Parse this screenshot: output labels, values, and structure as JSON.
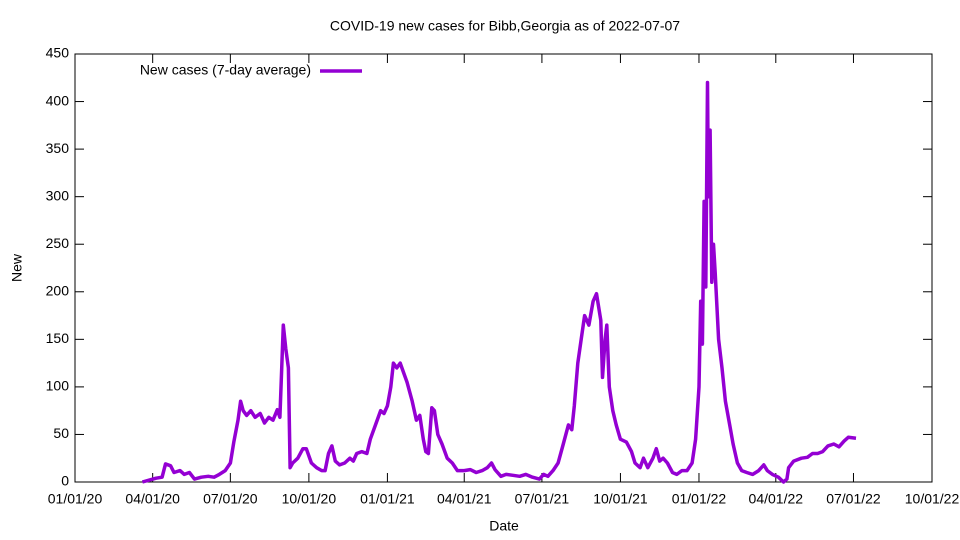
{
  "chart_data": {
    "type": "line",
    "title": "COVID-19 new cases for Bibb,Georgia as of 2022-07-07",
    "x_label": "Date",
    "y_label": "New",
    "xlim": [
      "2020-01-01",
      "2022-10-01"
    ],
    "xticks": [
      {
        "value": "2020-01-01",
        "label": "01/01/20"
      },
      {
        "value": "2020-04-01",
        "label": "04/01/20"
      },
      {
        "value": "2020-07-01",
        "label": "07/01/20"
      },
      {
        "value": "2020-10-01",
        "label": "10/01/20"
      },
      {
        "value": "2021-01-01",
        "label": "01/01/21"
      },
      {
        "value": "2021-04-01",
        "label": "04/01/21"
      },
      {
        "value": "2021-07-01",
        "label": "07/01/21"
      },
      {
        "value": "2021-10-01",
        "label": "10/01/21"
      },
      {
        "value": "2022-01-01",
        "label": "01/01/22"
      },
      {
        "value": "2022-04-01",
        "label": "04/01/22"
      },
      {
        "value": "2022-07-01",
        "label": "07/01/22"
      },
      {
        "value": "2022-10-01",
        "label": "10/01/22"
      }
    ],
    "ylim": [
      0,
      450
    ],
    "yticks": [
      0,
      50,
      100,
      150,
      200,
      250,
      300,
      350,
      400,
      450
    ],
    "legend": "top-left",
    "x": [
      "2020-03-20",
      "2020-03-28",
      "2020-04-05",
      "2020-04-12",
      "2020-04-16",
      "2020-04-22",
      "2020-04-26",
      "2020-05-03",
      "2020-05-08",
      "2020-05-14",
      "2020-05-20",
      "2020-05-28",
      "2020-06-05",
      "2020-06-12",
      "2020-06-18",
      "2020-06-25",
      "2020-07-01",
      "2020-07-05",
      "2020-07-10",
      "2020-07-13",
      "2020-07-16",
      "2020-07-20",
      "2020-07-25",
      "2020-07-30",
      "2020-08-05",
      "2020-08-10",
      "2020-08-15",
      "2020-08-20",
      "2020-08-25",
      "2020-08-28",
      "2020-09-01",
      "2020-09-04",
      "2020-09-07",
      "2020-09-09",
      "2020-09-12",
      "2020-09-18",
      "2020-09-24",
      "2020-09-28",
      "2020-10-04",
      "2020-10-10",
      "2020-10-16",
      "2020-10-20",
      "2020-10-24",
      "2020-10-28",
      "2020-11-01",
      "2020-11-06",
      "2020-11-12",
      "2020-11-18",
      "2020-11-22",
      "2020-11-26",
      "2020-12-02",
      "2020-12-08",
      "2020-12-12",
      "2020-12-18",
      "2020-12-24",
      "2020-12-28",
      "2021-01-01",
      "2021-01-05",
      "2021-01-08",
      "2021-01-12",
      "2021-01-16",
      "2021-01-20",
      "2021-01-24",
      "2021-01-30",
      "2021-02-04",
      "2021-02-08",
      "2021-02-12",
      "2021-02-15",
      "2021-02-18",
      "2021-02-22",
      "2021-02-25",
      "2021-03-01",
      "2021-03-06",
      "2021-03-12",
      "2021-03-18",
      "2021-03-24",
      "2021-04-01",
      "2021-04-08",
      "2021-04-15",
      "2021-04-22",
      "2021-04-28",
      "2021-05-03",
      "2021-05-07",
      "2021-05-14",
      "2021-05-20",
      "2021-05-28",
      "2021-06-05",
      "2021-06-12",
      "2021-06-20",
      "2021-06-28",
      "2021-07-03",
      "2021-07-08",
      "2021-07-14",
      "2021-07-20",
      "2021-07-26",
      "2021-08-01",
      "2021-08-05",
      "2021-08-08",
      "2021-08-12",
      "2021-08-16",
      "2021-08-20",
      "2021-08-25",
      "2021-08-30",
      "2021-09-03",
      "2021-09-08",
      "2021-09-10",
      "2021-09-13",
      "2021-09-15",
      "2021-09-18",
      "2021-09-22",
      "2021-09-26",
      "2021-10-01",
      "2021-10-08",
      "2021-10-14",
      "2021-10-18",
      "2021-10-24",
      "2021-10-28",
      "2021-11-02",
      "2021-11-08",
      "2021-11-12",
      "2021-11-16",
      "2021-11-20",
      "2021-11-25",
      "2021-12-01",
      "2021-12-06",
      "2021-12-12",
      "2021-12-18",
      "2021-12-24",
      "2021-12-28",
      "2022-01-01",
      "2022-01-03",
      "2022-01-05",
      "2022-01-07",
      "2022-01-09",
      "2022-01-11",
      "2022-01-12",
      "2022-01-14",
      "2022-01-16",
      "2022-01-18",
      "2022-01-20",
      "2022-01-24",
      "2022-01-28",
      "2022-02-01",
      "2022-02-06",
      "2022-02-10",
      "2022-02-15",
      "2022-02-20",
      "2022-02-26",
      "2022-03-05",
      "2022-03-12",
      "2022-03-18",
      "2022-03-22",
      "2022-03-28",
      "2022-04-04",
      "2022-04-10",
      "2022-04-14",
      "2022-04-16",
      "2022-04-22",
      "2022-05-01",
      "2022-05-08",
      "2022-05-14",
      "2022-05-20",
      "2022-05-26",
      "2022-06-01",
      "2022-06-08",
      "2022-06-14",
      "2022-06-20",
      "2022-06-25",
      "2022-07-04"
    ],
    "series": [
      {
        "name": "New cases (7-day average)",
        "color": "#9400d3",
        "values": [
          0,
          2,
          4,
          5,
          19,
          17,
          10,
          12,
          8,
          10,
          3,
          5,
          6,
          5,
          8,
          12,
          20,
          42,
          65,
          85,
          75,
          70,
          75,
          68,
          72,
          62,
          68,
          65,
          76,
          68,
          165,
          140,
          120,
          15,
          20,
          25,
          35,
          35,
          20,
          15,
          12,
          12,
          30,
          38,
          22,
          18,
          20,
          25,
          22,
          30,
          32,
          30,
          45,
          60,
          75,
          72,
          80,
          100,
          125,
          120,
          125,
          115,
          105,
          85,
          65,
          70,
          45,
          32,
          30,
          78,
          75,
          50,
          40,
          25,
          20,
          12,
          12,
          13,
          10,
          12,
          15,
          20,
          13,
          6,
          8,
          7,
          6,
          8,
          5,
          3,
          8,
          6,
          12,
          20,
          40,
          60,
          55,
          80,
          125,
          150,
          175,
          165,
          190,
          198,
          170,
          110,
          150,
          165,
          100,
          75,
          60,
          45,
          42,
          32,
          20,
          15,
          25,
          15,
          25,
          35,
          22,
          25,
          20,
          10,
          8,
          12,
          12,
          20,
          45,
          100,
          190,
          145,
          295,
          205,
          420,
          300,
          370,
          210,
          250,
          220,
          150,
          120,
          85,
          60,
          40,
          20,
          12,
          10,
          8,
          12,
          18,
          12,
          8,
          5,
          0,
          3,
          15,
          22,
          25,
          26,
          30,
          30,
          32,
          38,
          40,
          37,
          43,
          47,
          46
        ]
      }
    ]
  }
}
